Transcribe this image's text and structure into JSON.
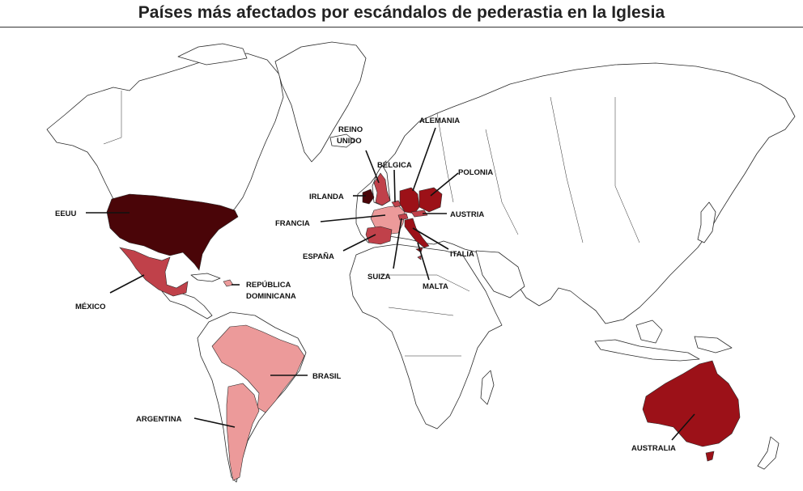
{
  "title": "Países más afectados por escándalos de pederastia en la Iglesia",
  "colors": {
    "darkest": "#4a0508",
    "dark": "#9c1118",
    "medium": "#c0414a",
    "light": "#ec9a9a",
    "land": "#ffffff",
    "outline": "#2a2a2a"
  },
  "countries": [
    {
      "id": "eeuu",
      "label": "EEUU",
      "color": "darkest"
    },
    {
      "id": "mexico",
      "label": "MÉXICO",
      "color": "medium"
    },
    {
      "id": "republica-dominicana",
      "label": "REPÚBLICA DOMINICANA",
      "lines": [
        "REPÚBLICA",
        "DOMINICANA"
      ],
      "color": "light"
    },
    {
      "id": "brasil",
      "label": "BRASIL",
      "color": "light"
    },
    {
      "id": "argentina",
      "label": "ARGENTINA",
      "color": "light"
    },
    {
      "id": "australia",
      "label": "AUSTRALIA",
      "color": "dark"
    },
    {
      "id": "irlanda",
      "label": "IRLANDA",
      "color": "darkest"
    },
    {
      "id": "reino-unido",
      "label": "REINO UNIDO",
      "lines": [
        "REINO",
        "UNIDO"
      ],
      "color": "medium"
    },
    {
      "id": "belgica",
      "label": "BÉLGICA",
      "color": "medium"
    },
    {
      "id": "alemania",
      "label": "ALEMANIA",
      "color": "dark"
    },
    {
      "id": "polonia",
      "label": "POLONIA",
      "color": "dark"
    },
    {
      "id": "francia",
      "label": "FRANCIA",
      "color": "light"
    },
    {
      "id": "austria",
      "label": "AUSTRIA",
      "color": "medium"
    },
    {
      "id": "espana",
      "label": "ESPAÑA",
      "color": "medium"
    },
    {
      "id": "italia",
      "label": "ITALIA",
      "color": "dark"
    },
    {
      "id": "suiza",
      "label": "SUIZA",
      "color": "medium"
    },
    {
      "id": "malta",
      "label": "MALTA",
      "color": "medium"
    }
  ]
}
